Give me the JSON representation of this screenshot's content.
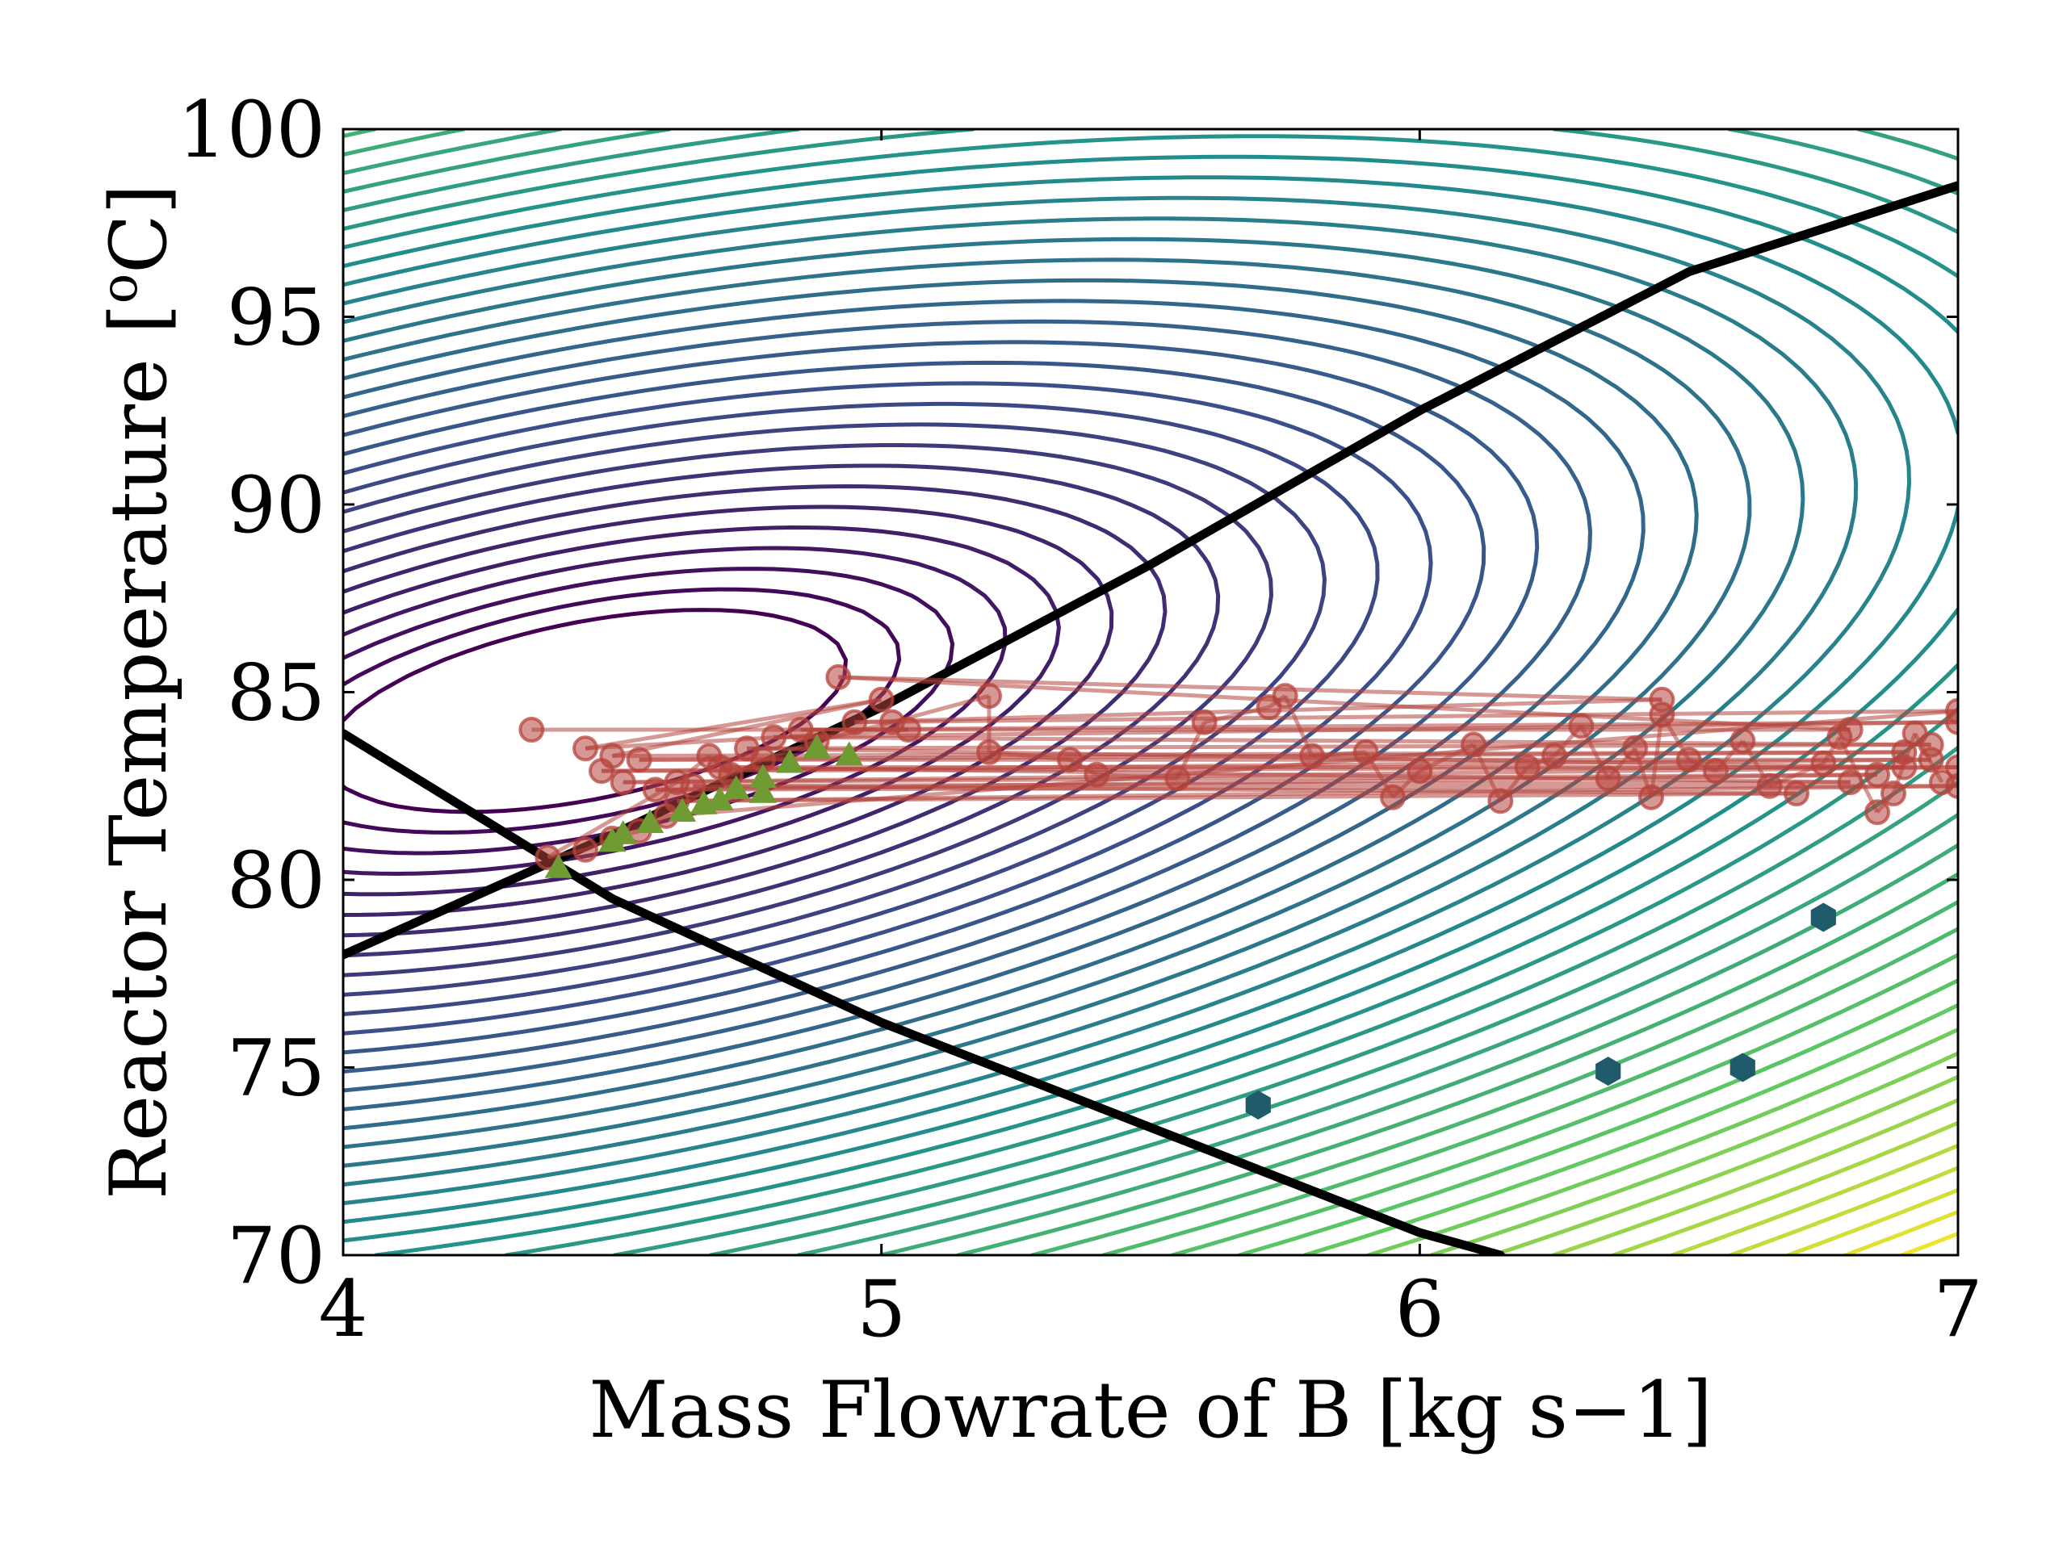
{
  "chart_data": {
    "type": "line",
    "title": "",
    "xlabel": "Mass Flowrate of B [kg s−1]",
    "ylabel": "Reactor Temperature [°C]",
    "ylabel_main": "Reactor Temperature [",
    "ylabel_degree": "o",
    "ylabel_unit": "C]",
    "xlim": [
      4,
      7
    ],
    "ylim": [
      70,
      100
    ],
    "xticks": [
      4,
      5,
      6,
      7
    ],
    "yticks": [
      70,
      75,
      80,
      85,
      90,
      95,
      100
    ],
    "xtick_labels": [
      "4",
      "5",
      "6",
      "7"
    ],
    "ytick_labels": [
      "70",
      "75",
      "80",
      "85",
      "90",
      "95",
      "100"
    ],
    "grid": false,
    "background_contours": {
      "kind": "contour",
      "colormap": [
        "#440154",
        "#3b528b",
        "#21918c",
        "#5ec962",
        "#fde725"
      ],
      "optimum_center": [
        4.45,
        84.5
      ],
      "levels": 46
    },
    "constraint_lines": [
      {
        "color": "#000000",
        "x": [
          4.0,
          4.5,
          5.0,
          5.5,
          6.0,
          6.5,
          7.0
        ],
        "y": [
          78.0,
          81.2,
          84.6,
          88.4,
          92.5,
          96.2,
          98.5
        ]
      },
      {
        "color": "#000000",
        "x": [
          4.0,
          4.5,
          5.0,
          5.5,
          6.0,
          6.15
        ],
        "y": [
          83.9,
          79.5,
          76.2,
          73.4,
          70.6,
          70.0
        ]
      }
    ],
    "series": [
      {
        "marker": "circle",
        "color": "#b5443c",
        "connected": true,
        "points": [
          [
            4.35,
            84.0
          ],
          [
            5.05,
            84.0
          ],
          [
            4.45,
            83.5
          ],
          [
            5.0,
            84.8
          ],
          [
            4.5,
            83.3
          ],
          [
            6.9,
            83.4
          ],
          [
            4.55,
            83.2
          ],
          [
            6.95,
            83.2
          ],
          [
            4.48,
            82.9
          ],
          [
            7.0,
            83.0
          ],
          [
            4.52,
            82.6
          ],
          [
            6.85,
            82.8
          ],
          [
            4.58,
            82.4
          ],
          [
            7.0,
            82.5
          ],
          [
            4.62,
            82.1
          ],
          [
            6.7,
            82.3
          ],
          [
            4.65,
            82.5
          ],
          [
            6.8,
            82.6
          ],
          [
            4.7,
            83.0
          ],
          [
            6.9,
            83.0
          ],
          [
            4.75,
            83.5
          ],
          [
            6.95,
            83.6
          ],
          [
            4.8,
            83.8
          ],
          [
            7.0,
            84.2
          ],
          [
            4.85,
            84.0
          ],
          [
            6.8,
            84.0
          ],
          [
            4.92,
            85.4
          ],
          [
            6.45,
            84.8
          ],
          [
            4.95,
            84.2
          ],
          [
            7.0,
            84.5
          ],
          [
            4.6,
            81.7
          ],
          [
            4.55,
            81.3
          ],
          [
            4.5,
            81.1
          ],
          [
            4.45,
            80.8
          ],
          [
            4.38,
            80.6
          ],
          [
            4.62,
            82.6
          ],
          [
            4.68,
            83.3
          ],
          [
            4.72,
            82.8
          ],
          [
            4.78,
            83.2
          ],
          [
            4.88,
            83.7
          ],
          [
            5.02,
            84.2
          ],
          [
            5.2,
            84.9
          ],
          [
            5.2,
            83.4
          ],
          [
            5.35,
            83.2
          ],
          [
            5.4,
            82.8
          ],
          [
            5.55,
            82.7
          ],
          [
            5.6,
            84.2
          ],
          [
            5.72,
            84.6
          ],
          [
            5.75,
            84.9
          ],
          [
            5.8,
            83.3
          ],
          [
            5.9,
            83.4
          ],
          [
            5.95,
            82.2
          ],
          [
            6.0,
            82.9
          ],
          [
            6.1,
            83.6
          ],
          [
            6.15,
            82.1
          ],
          [
            6.2,
            83.0
          ],
          [
            6.25,
            83.3
          ],
          [
            6.3,
            84.1
          ],
          [
            6.35,
            82.7
          ],
          [
            6.4,
            83.5
          ],
          [
            6.43,
            82.2
          ],
          [
            6.45,
            84.4
          ],
          [
            6.5,
            83.2
          ],
          [
            6.55,
            82.9
          ],
          [
            6.6,
            83.7
          ],
          [
            6.65,
            82.5
          ],
          [
            6.75,
            83.1
          ],
          [
            6.78,
            83.8
          ],
          [
            6.85,
            81.8
          ],
          [
            6.88,
            82.3
          ],
          [
            6.92,
            83.9
          ],
          [
            6.97,
            82.6
          ]
        ]
      },
      {
        "marker": "triangle",
        "color": "#6e9b32",
        "connected": false,
        "points": [
          [
            4.4,
            80.3
          ],
          [
            4.5,
            81.0
          ],
          [
            4.52,
            81.2
          ],
          [
            4.57,
            81.5
          ],
          [
            4.63,
            81.8
          ],
          [
            4.67,
            82.0
          ],
          [
            4.7,
            82.1
          ],
          [
            4.73,
            82.4
          ],
          [
            4.78,
            82.3
          ],
          [
            4.78,
            82.7
          ],
          [
            4.83,
            83.1
          ],
          [
            4.88,
            83.5
          ],
          [
            4.94,
            83.3
          ]
        ]
      },
      {
        "marker": "hexagon",
        "color": "#1f5b6a",
        "connected": false,
        "points": [
          [
            5.7,
            74.0
          ],
          [
            6.35,
            74.9
          ],
          [
            6.6,
            75.0
          ],
          [
            6.75,
            79.0
          ]
        ]
      }
    ]
  }
}
